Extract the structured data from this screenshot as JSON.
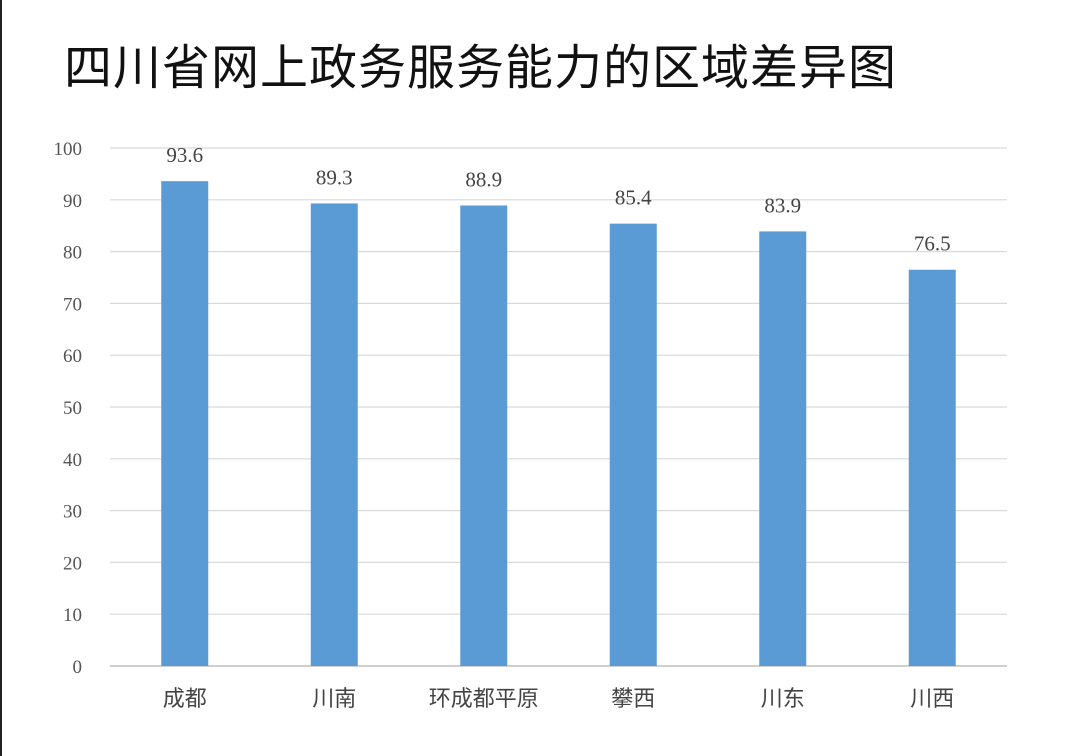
{
  "chart_data": {
    "type": "bar",
    "title": "四川省网上政务服务能力的区域差异图",
    "categories": [
      "成都",
      "川南",
      "环成都平原",
      "攀西",
      "川东",
      "川西"
    ],
    "values": [
      93.6,
      89.3,
      88.9,
      85.4,
      83.9,
      76.5
    ],
    "xlabel": "",
    "ylabel": "",
    "ylim": [
      0,
      100
    ],
    "yticks": [
      0,
      10,
      20,
      30,
      40,
      50,
      60,
      70,
      80,
      90,
      100
    ],
    "grid": true,
    "legend": "none",
    "bar_color": "#5b9bd5",
    "grid_color": "#d9d9d9",
    "axis_color": "#bfbfbf"
  }
}
